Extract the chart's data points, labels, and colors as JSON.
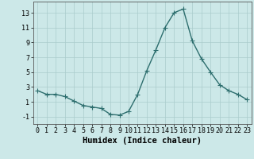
{
  "x": [
    0,
    1,
    2,
    3,
    4,
    5,
    6,
    7,
    8,
    9,
    10,
    11,
    12,
    13,
    14,
    15,
    16,
    17,
    18,
    19,
    20,
    21,
    22,
    23
  ],
  "y": [
    2.5,
    2.0,
    2.0,
    1.7,
    1.1,
    0.5,
    0.3,
    0.1,
    -0.7,
    -0.8,
    -0.3,
    2.0,
    5.2,
    8.0,
    11.0,
    13.0,
    13.5,
    9.2,
    6.8,
    5.0,
    3.3,
    2.5,
    2.0,
    1.3
  ],
  "line_color": "#2d6e6e",
  "marker": "+",
  "marker_size": 4,
  "linewidth": 1.0,
  "xlabel": "Humidex (Indice chaleur)",
  "xlim": [
    -0.5,
    23.5
  ],
  "ylim": [
    -2,
    14.5
  ],
  "yticks": [
    -1,
    1,
    3,
    5,
    7,
    9,
    11,
    13
  ],
  "xticks": [
    0,
    1,
    2,
    3,
    4,
    5,
    6,
    7,
    8,
    9,
    10,
    11,
    12,
    13,
    14,
    15,
    16,
    17,
    18,
    19,
    20,
    21,
    22,
    23
  ],
  "xtick_labels": [
    "0",
    "1",
    "2",
    "3",
    "4",
    "5",
    "6",
    "7",
    "8",
    "9",
    "10",
    "11",
    "12",
    "13",
    "14",
    "15",
    "16",
    "17",
    "18",
    "19",
    "20",
    "21",
    "22",
    "23"
  ],
  "bg_color": "#cce8e8",
  "grid_color": "#aacccc",
  "tick_fontsize": 6,
  "xlabel_fontsize": 7.5,
  "xlabel_fontweight": "bold"
}
